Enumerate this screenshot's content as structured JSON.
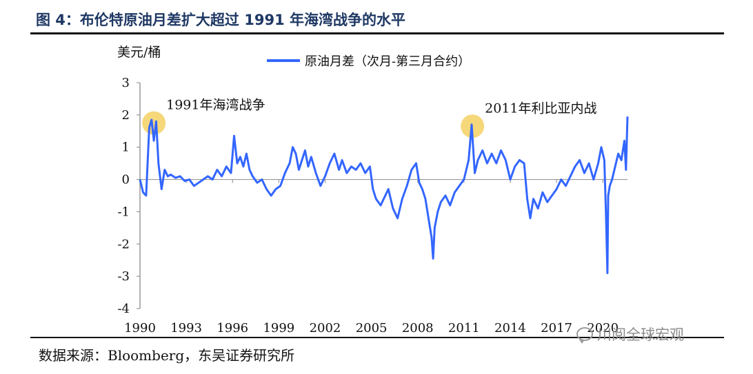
{
  "figure": {
    "title": "图 4：布伦特原油月差扩大超过 1991 年海湾战争的水平",
    "source": "数据来源：Bloomberg，东吴证券研究所",
    "watermark": "川阅全球宏观",
    "watermark_icon": "wechat-icon"
  },
  "chart_data": {
    "type": "line",
    "ylabel": "美元/桶",
    "ylim": [
      -4,
      3
    ],
    "yticks": [
      "3",
      "2",
      "1",
      "0",
      "-1",
      "-2",
      "-3",
      "-4"
    ],
    "xlim": [
      1990,
      2021.6
    ],
    "xticks": [
      "1990",
      "1993",
      "1996",
      "1999",
      "2002",
      "2005",
      "2008",
      "2011",
      "2014",
      "2017",
      "2020"
    ],
    "grid": false,
    "legend_position": "top",
    "line_color": "#3366ff",
    "highlight_color": "#f5d36b",
    "series": [
      {
        "name": "原油月差（次月-第三月合约）",
        "x": [
          1990.0,
          1990.2,
          1990.4,
          1990.6,
          1990.75,
          1990.9,
          1991.05,
          1991.2,
          1991.4,
          1991.6,
          1991.8,
          1992.0,
          1992.3,
          1992.6,
          1992.9,
          1993.2,
          1993.5,
          1993.8,
          1994.1,
          1994.4,
          1994.7,
          1995.0,
          1995.3,
          1995.6,
          1995.9,
          1996.1,
          1996.3,
          1996.5,
          1996.7,
          1996.9,
          1997.1,
          1997.3,
          1997.6,
          1997.9,
          1998.2,
          1998.5,
          1998.8,
          1999.1,
          1999.4,
          1999.7,
          1999.9,
          2000.1,
          2000.3,
          2000.5,
          2000.7,
          2000.9,
          2001.1,
          2001.4,
          2001.7,
          2002.0,
          2002.3,
          2002.6,
          2002.9,
          2003.1,
          2003.4,
          2003.7,
          2004.0,
          2004.3,
          2004.6,
          2004.9,
          2005.1,
          2005.3,
          2005.6,
          2005.9,
          2006.1,
          2006.4,
          2006.7,
          2007.0,
          2007.3,
          2007.6,
          2007.9,
          2008.1,
          2008.3,
          2008.5,
          2008.7,
          2008.9,
          2009.0,
          2009.1,
          2009.3,
          2009.5,
          2009.8,
          2010.1,
          2010.4,
          2010.7,
          2011.0,
          2011.3,
          2011.5,
          2011.7,
          2011.9,
          2012.2,
          2012.5,
          2012.8,
          2013.1,
          2013.4,
          2013.7,
          2014.0,
          2014.3,
          2014.6,
          2014.9,
          2015.1,
          2015.3,
          2015.5,
          2015.8,
          2016.1,
          2016.4,
          2016.7,
          2017.0,
          2017.3,
          2017.6,
          2017.9,
          2018.2,
          2018.5,
          2018.8,
          2019.1,
          2019.4,
          2019.7,
          2019.9,
          2020.1,
          2020.2,
          2020.3,
          2020.35,
          2020.45,
          2020.6,
          2020.8,
          2021.0,
          2021.2,
          2021.4,
          2021.5,
          2021.6
        ],
        "values": [
          0.0,
          -0.4,
          -0.5,
          1.6,
          1.85,
          1.2,
          1.8,
          0.5,
          -0.3,
          0.3,
          0.1,
          0.15,
          0.05,
          0.1,
          -0.05,
          0.0,
          -0.2,
          -0.1,
          0.0,
          0.1,
          0.0,
          0.3,
          0.1,
          0.4,
          0.2,
          1.35,
          0.5,
          0.7,
          0.4,
          0.8,
          0.3,
          0.1,
          -0.1,
          0.0,
          -0.3,
          -0.5,
          -0.3,
          -0.2,
          0.2,
          0.5,
          1.0,
          0.8,
          0.3,
          0.6,
          0.9,
          0.4,
          0.7,
          0.2,
          -0.2,
          0.1,
          0.5,
          0.8,
          0.3,
          0.6,
          0.2,
          0.4,
          0.3,
          0.5,
          0.2,
          0.4,
          -0.3,
          -0.6,
          -0.8,
          -0.5,
          -0.3,
          -0.9,
          -1.2,
          -0.6,
          -0.2,
          0.3,
          0.5,
          -0.1,
          -0.3,
          -0.6,
          -1.2,
          -1.8,
          -2.45,
          -1.5,
          -1.0,
          -0.7,
          -0.5,
          -0.8,
          -0.4,
          -0.2,
          0.0,
          0.6,
          1.7,
          0.2,
          0.6,
          0.9,
          0.5,
          0.8,
          0.5,
          0.9,
          0.6,
          0.0,
          0.4,
          0.6,
          0.5,
          -0.6,
          -1.2,
          -0.6,
          -0.9,
          -0.4,
          -0.7,
          -0.5,
          -0.3,
          0.0,
          -0.2,
          0.1,
          0.4,
          0.6,
          0.2,
          0.5,
          0.0,
          0.5,
          1.0,
          0.6,
          -1.0,
          -2.9,
          -0.5,
          -0.2,
          0.0,
          0.4,
          0.8,
          0.6,
          1.2,
          0.3,
          1.95
        ]
      }
    ],
    "annotations": [
      {
        "label": "1991年海湾战争",
        "x": 1990.9,
        "y": 1.75
      },
      {
        "label": "2011年利比亚内战",
        "x": 2011.55,
        "y": 1.65
      }
    ]
  }
}
